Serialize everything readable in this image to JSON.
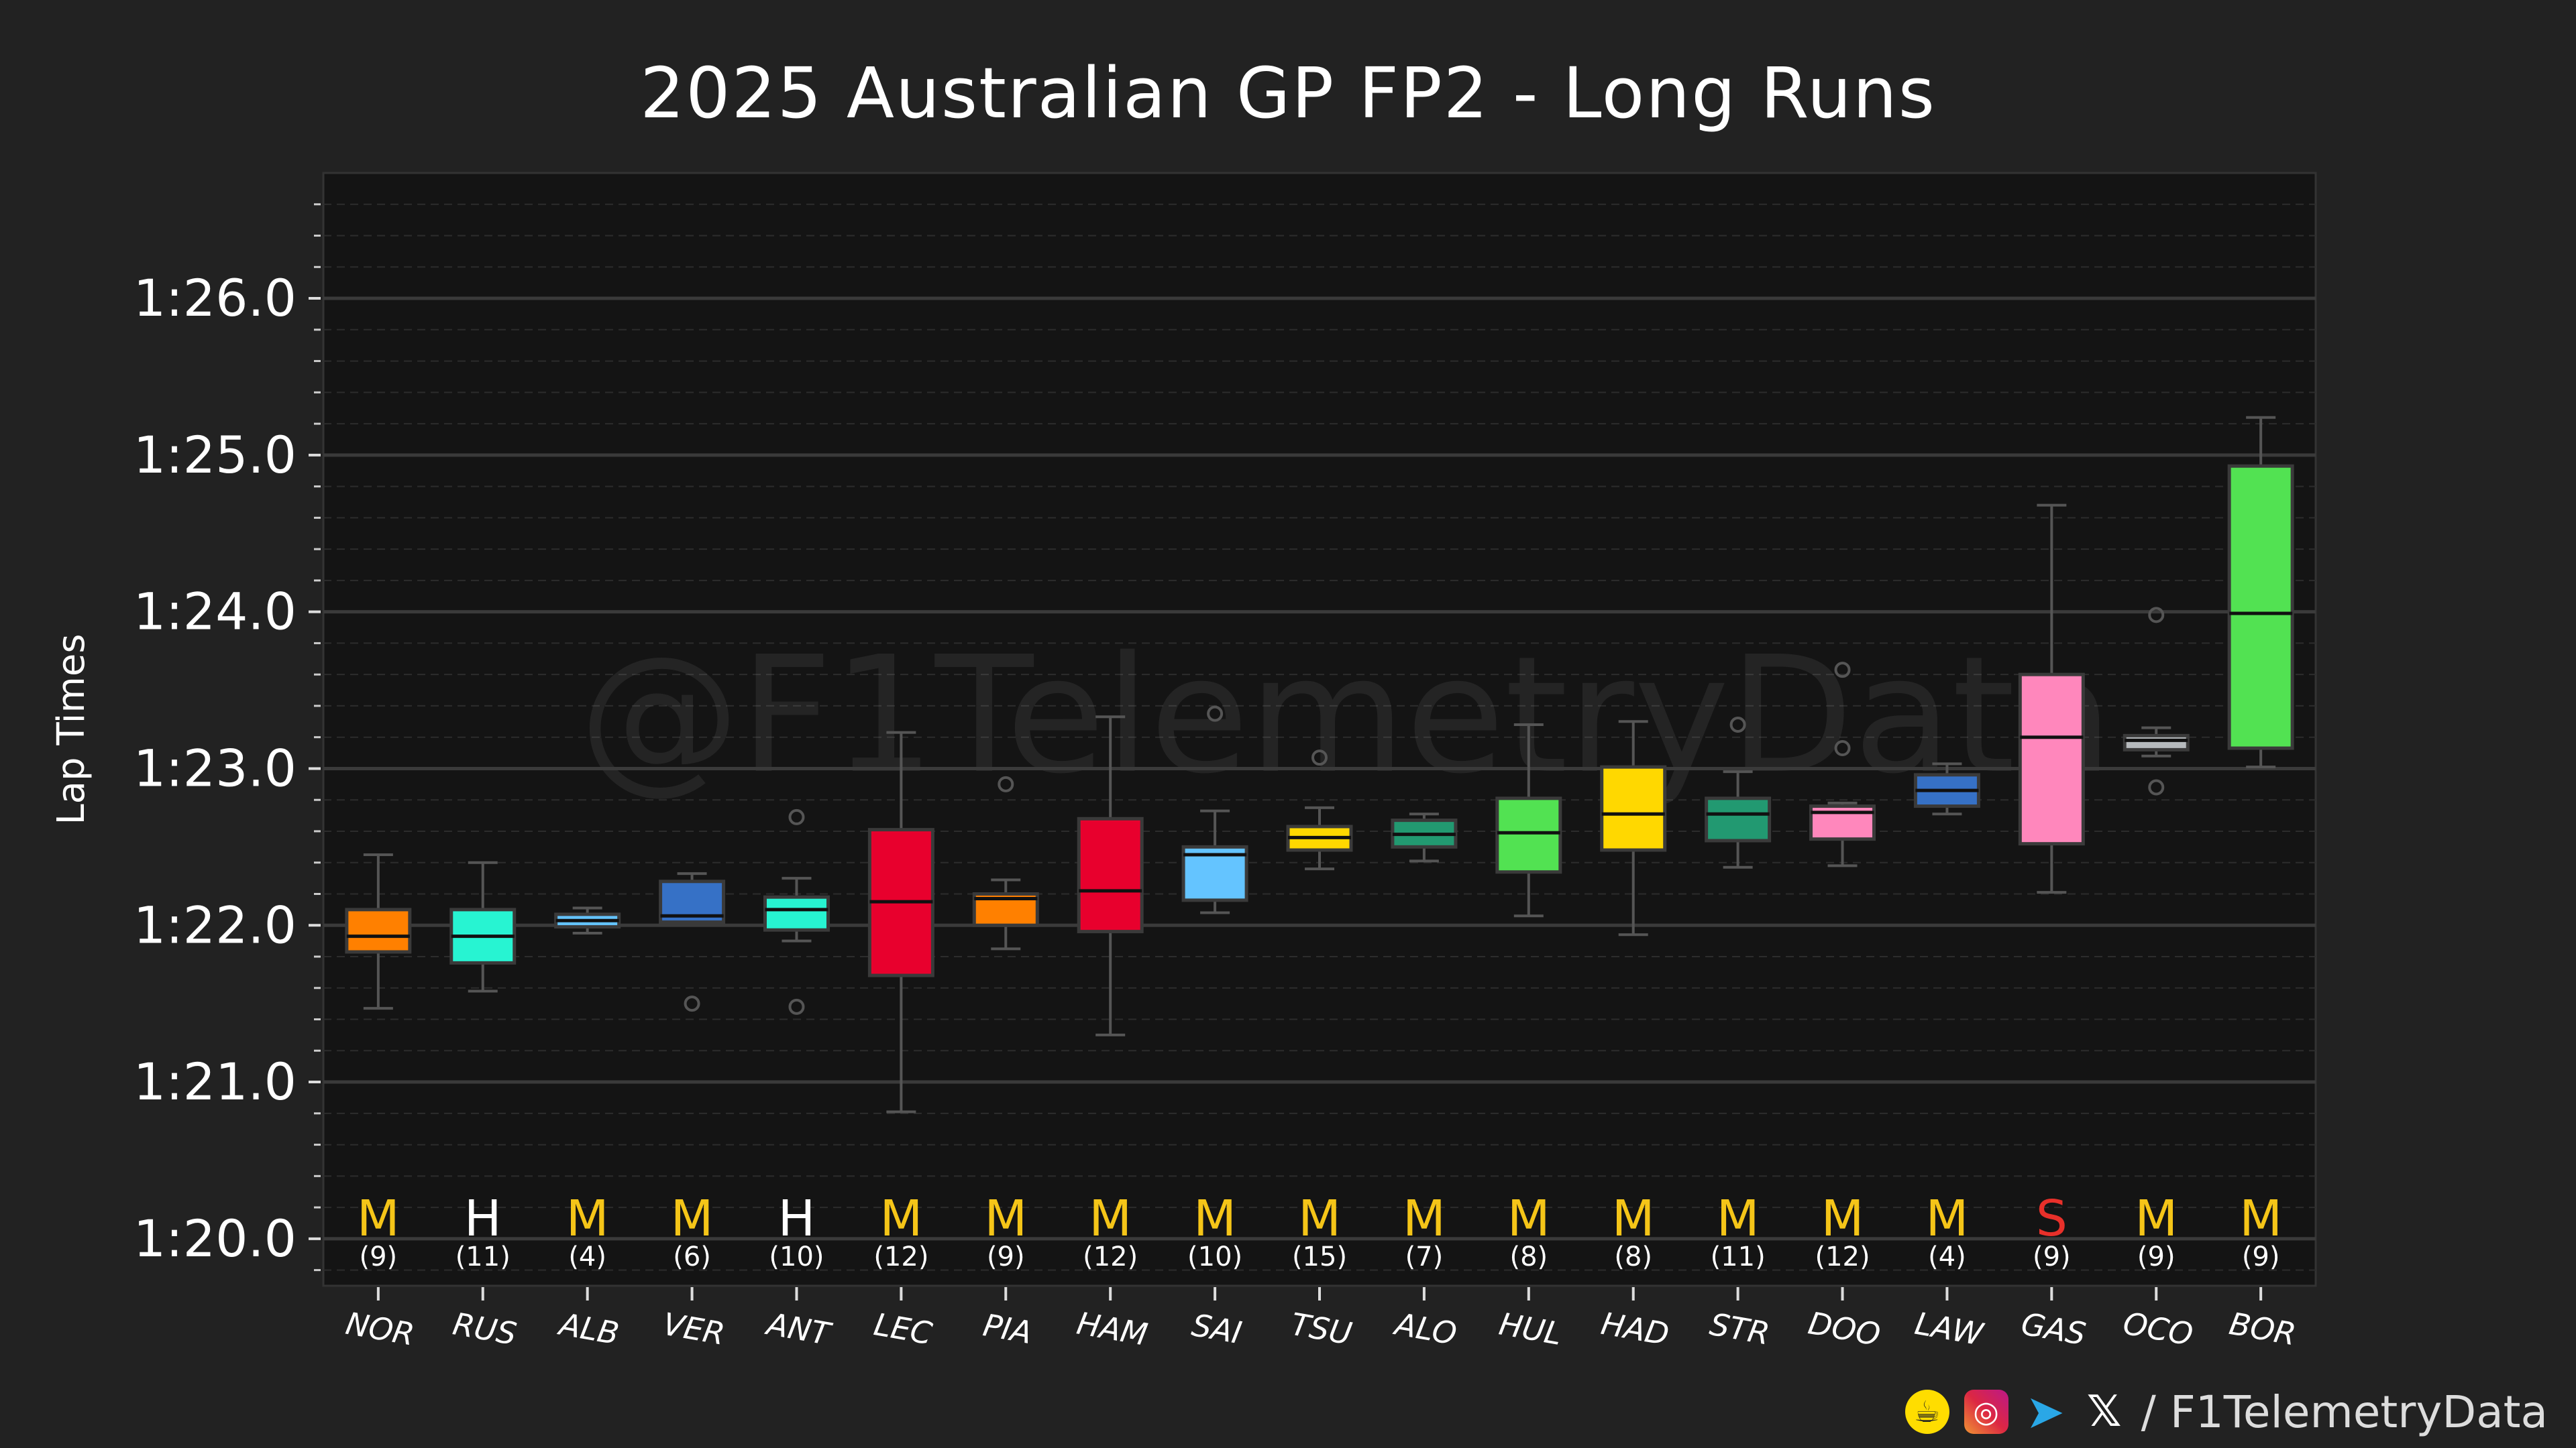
{
  "title": "2025 Australian GP FP2 - Long Runs",
  "watermark": "@F1TelemetryData",
  "footer": {
    "icons": [
      "buymeacoffee-icon",
      "instagram-icon",
      "telegram-icon",
      "x-icon"
    ],
    "text": "/ F1TelemetryData"
  },
  "colors": {
    "background": "#222222",
    "plot_background": "#141414",
    "grid_major": "#3a3a3a",
    "medium_compound": "#f5c518",
    "hard_compound": "#ffffff",
    "soft_compound": "#e8302a"
  },
  "chart_data": {
    "type": "box",
    "title": "2025 Australian GP FP2 - Long Runs",
    "ylabel": "Lap Times",
    "xlabel": "",
    "ylim": [
      79.7,
      86.8
    ],
    "yticks": [
      80,
      81,
      82,
      83,
      84,
      85,
      86
    ],
    "ytick_labels": [
      "1:20.0",
      "1:21.0",
      "1:22.0",
      "1:23.0",
      "1:24.0",
      "1:25.0",
      "1:26.0"
    ],
    "grid": true,
    "drivers": [
      {
        "driver": "NOR",
        "color": "#ff8000",
        "compound": "M",
        "laps": "(9)",
        "whisker_low": 81.47,
        "q1": 81.83,
        "median": 81.93,
        "q3": 82.1,
        "whisker_high": 82.45,
        "outliers": []
      },
      {
        "driver": "RUS",
        "color": "#27f4d2",
        "compound": "H",
        "laps": "(11)",
        "whisker_low": 81.58,
        "q1": 81.76,
        "median": 81.93,
        "q3": 82.1,
        "whisker_high": 82.4,
        "outliers": []
      },
      {
        "driver": "ALB",
        "color": "#64c4ff",
        "compound": "M",
        "laps": "(4)",
        "whisker_low": 81.95,
        "q1": 81.99,
        "median": 82.03,
        "q3": 82.07,
        "whisker_high": 82.11,
        "outliers": []
      },
      {
        "driver": "VER",
        "color": "#3671c6",
        "compound": "M",
        "laps": "(6)",
        "whisker_low": 82.02,
        "q1": 82.02,
        "median": 82.06,
        "q3": 82.28,
        "whisker_high": 82.33,
        "outliers": [
          81.5
        ]
      },
      {
        "driver": "ANT",
        "color": "#27f4d2",
        "compound": "H",
        "laps": "(10)",
        "whisker_low": 81.9,
        "q1": 81.97,
        "median": 82.1,
        "q3": 82.18,
        "whisker_high": 82.3,
        "outliers": [
          81.48,
          82.69
        ]
      },
      {
        "driver": "LEC",
        "color": "#e8002d",
        "compound": "M",
        "laps": "(12)",
        "whisker_low": 80.81,
        "q1": 81.68,
        "median": 82.15,
        "q3": 82.61,
        "whisker_high": 83.23,
        "outliers": []
      },
      {
        "driver": "PIA",
        "color": "#ff8000",
        "compound": "M",
        "laps": "(9)",
        "whisker_low": 81.85,
        "q1": 82.0,
        "median": 82.17,
        "q3": 82.2,
        "whisker_high": 82.29,
        "outliers": [
          82.9
        ]
      },
      {
        "driver": "HAM",
        "color": "#e8002d",
        "compound": "M",
        "laps": "(12)",
        "whisker_low": 81.3,
        "q1": 81.96,
        "median": 82.22,
        "q3": 82.68,
        "whisker_high": 83.33,
        "outliers": []
      },
      {
        "driver": "SAI",
        "color": "#64c4ff",
        "compound": "M",
        "laps": "(10)",
        "whisker_low": 82.08,
        "q1": 82.16,
        "median": 82.45,
        "q3": 82.5,
        "whisker_high": 82.73,
        "outliers": [
          83.35
        ]
      },
      {
        "driver": "TSU",
        "color": "#ffd800",
        "compound": "M",
        "laps": "(15)",
        "whisker_low": 82.36,
        "q1": 82.48,
        "median": 82.56,
        "q3": 82.63,
        "whisker_high": 82.75,
        "outliers": [
          83.07
        ]
      },
      {
        "driver": "ALO",
        "color": "#229971",
        "compound": "M",
        "laps": "(7)",
        "whisker_low": 82.41,
        "q1": 82.5,
        "median": 82.58,
        "q3": 82.67,
        "whisker_high": 82.71,
        "outliers": []
      },
      {
        "driver": "HUL",
        "color": "#52e252",
        "compound": "M",
        "laps": "(8)",
        "whisker_low": 82.06,
        "q1": 82.34,
        "median": 82.59,
        "q3": 82.81,
        "whisker_high": 83.28,
        "outliers": []
      },
      {
        "driver": "HAD",
        "color": "#ffd800",
        "compound": "M",
        "laps": "(8)",
        "whisker_low": 81.94,
        "q1": 82.48,
        "median": 82.71,
        "q3": 83.01,
        "whisker_high": 83.3,
        "outliers": []
      },
      {
        "driver": "STR",
        "color": "#229971",
        "compound": "M",
        "laps": "(11)",
        "whisker_low": 82.37,
        "q1": 82.54,
        "median": 82.71,
        "q3": 82.81,
        "whisker_high": 82.98,
        "outliers": [
          83.28
        ]
      },
      {
        "driver": "DOO",
        "color": "#ff87bc",
        "compound": "M",
        "laps": "(12)",
        "whisker_low": 82.38,
        "q1": 82.55,
        "median": 82.72,
        "q3": 82.76,
        "whisker_high": 82.78,
        "outliers": [
          83.13,
          83.63
        ]
      },
      {
        "driver": "LAW",
        "color": "#3671c6",
        "compound": "M",
        "laps": "(4)",
        "whisker_low": 82.71,
        "q1": 82.76,
        "median": 82.86,
        "q3": 82.96,
        "whisker_high": 83.03,
        "outliers": []
      },
      {
        "driver": "GAS",
        "color": "#ff87bc",
        "compound": "S",
        "laps": "(9)",
        "whisker_low": 82.21,
        "q1": 82.52,
        "median": 83.2,
        "q3": 83.6,
        "whisker_high": 84.68,
        "outliers": []
      },
      {
        "driver": "OCO",
        "color": "#b6babd",
        "compound": "M",
        "laps": "(9)",
        "whisker_low": 83.08,
        "q1": 83.12,
        "median": 83.18,
        "q3": 83.21,
        "whisker_high": 83.26,
        "outliers": [
          82.88,
          83.98
        ]
      },
      {
        "driver": "BOR",
        "color": "#52e252",
        "compound": "M",
        "laps": "(9)",
        "whisker_low": 83.01,
        "q1": 83.13,
        "median": 83.99,
        "q3": 84.93,
        "whisker_high": 85.24,
        "outliers": []
      }
    ]
  }
}
